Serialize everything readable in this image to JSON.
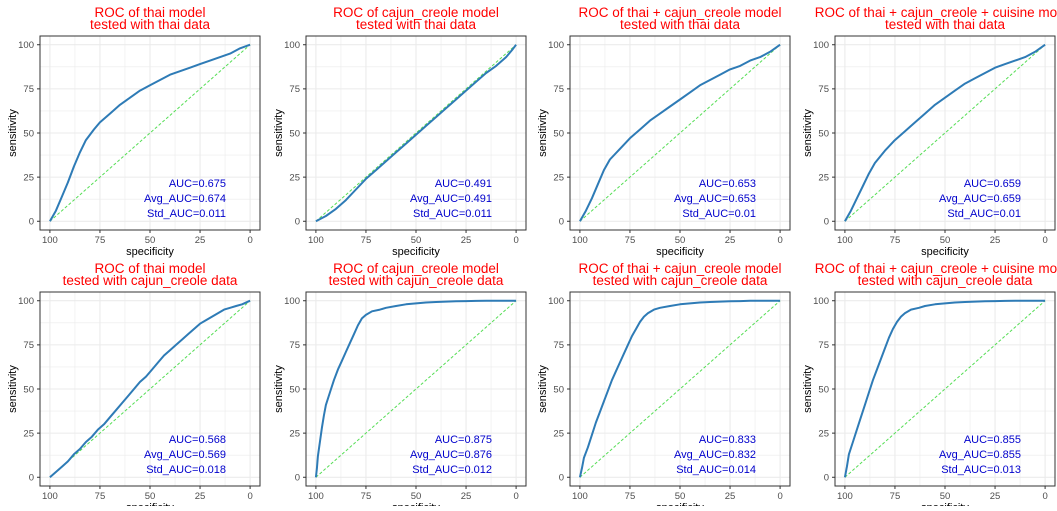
{
  "colors": {
    "title": "#ff0000",
    "curve": "#2e7bb6",
    "diagonal": "#55dd55",
    "auc_text": "#0000cc",
    "grid": "#ebebeb",
    "axis_text": "#4d4d4d",
    "label_text": "#000000"
  },
  "chart_data": [
    {
      "type": "line",
      "title": "ROC of thai model",
      "subtitle": "tested with thai data",
      "xlabel": "specificity",
      "ylabel": "sensitivity",
      "xlim": [
        100,
        0
      ],
      "ylim": [
        0,
        100
      ],
      "x_ticks": [
        100,
        75,
        50,
        25,
        0
      ],
      "y_ticks": [
        0,
        25,
        50,
        75,
        100
      ],
      "x_reversed": true,
      "grid": true,
      "annotations": [
        "AUC=0.675",
        "Avg_AUC=0.674",
        "Std_AUC=0.011"
      ],
      "series": [
        {
          "x": [
            100,
            97,
            94,
            91,
            88,
            85,
            82,
            78,
            75,
            70,
            65,
            60,
            55,
            50,
            45,
            40,
            35,
            30,
            25,
            20,
            15,
            10,
            5,
            0
          ],
          "y": [
            0,
            6,
            14,
            22,
            31,
            39,
            46,
            52,
            56,
            61,
            66,
            70,
            74,
            77,
            80,
            83,
            85,
            87,
            89,
            91,
            93,
            95,
            98,
            100
          ]
        }
      ]
    },
    {
      "type": "line",
      "title": "ROC of cajun_creole model",
      "subtitle": "tested with thai data",
      "xlabel": "specificity",
      "ylabel": "sensitivity",
      "xlim": [
        100,
        0
      ],
      "ylim": [
        0,
        100
      ],
      "x_ticks": [
        100,
        75,
        50,
        25,
        0
      ],
      "y_ticks": [
        0,
        25,
        50,
        75,
        100
      ],
      "x_reversed": true,
      "grid": true,
      "annotations": [
        "AUC=0.491",
        "Avg_AUC=0.491",
        "Std_AUC=0.011"
      ],
      "series": [
        {
          "x": [
            100,
            95,
            90,
            85,
            80,
            75,
            70,
            65,
            60,
            55,
            50,
            45,
            40,
            35,
            30,
            25,
            20,
            15,
            10,
            5,
            2,
            0
          ],
          "y": [
            0,
            3,
            7,
            12,
            18,
            24,
            29,
            34,
            39,
            44,
            49,
            54,
            59,
            64,
            69,
            74,
            79,
            84,
            88,
            93,
            97,
            100
          ]
        }
      ]
    },
    {
      "type": "line",
      "title": "ROC of thai + cajun_creole model",
      "subtitle": "tested with thai data",
      "xlabel": "specificity",
      "ylabel": "sensitivity",
      "xlim": [
        100,
        0
      ],
      "ylim": [
        0,
        100
      ],
      "x_ticks": [
        100,
        75,
        50,
        25,
        0
      ],
      "y_ticks": [
        0,
        25,
        50,
        75,
        100
      ],
      "x_reversed": true,
      "grid": true,
      "annotations": [
        "AUC=0.653",
        "Avg_AUC=0.653",
        "Std_AUC=0.01"
      ],
      "series": [
        {
          "x": [
            100,
            97,
            94,
            91,
            88,
            85,
            80,
            75,
            70,
            65,
            60,
            55,
            50,
            45,
            40,
            35,
            30,
            25,
            20,
            15,
            10,
            5,
            0
          ],
          "y": [
            0,
            6,
            13,
            21,
            29,
            35,
            41,
            47,
            52,
            57,
            61,
            65,
            69,
            73,
            77,
            80,
            83,
            86,
            88,
            91,
            93,
            96,
            100
          ]
        }
      ]
    },
    {
      "type": "line",
      "title": "ROC of thai + cajun_creole + cuisine model",
      "subtitle": "tested with thai data",
      "xlabel": "specificity",
      "ylabel": "sensitivity",
      "xlim": [
        100,
        0
      ],
      "ylim": [
        0,
        100
      ],
      "x_ticks": [
        100,
        75,
        50,
        25,
        0
      ],
      "y_ticks": [
        0,
        25,
        50,
        75,
        100
      ],
      "x_reversed": true,
      "grid": true,
      "annotations": [
        "AUC=0.659",
        "Avg_AUC=0.659",
        "Std_AUC=0.01"
      ],
      "series": [
        {
          "x": [
            100,
            97,
            94,
            91,
            88,
            85,
            80,
            75,
            70,
            65,
            60,
            55,
            50,
            45,
            40,
            35,
            30,
            25,
            20,
            15,
            10,
            5,
            0
          ],
          "y": [
            0,
            6,
            13,
            20,
            27,
            33,
            40,
            46,
            51,
            56,
            61,
            66,
            70,
            74,
            78,
            81,
            84,
            87,
            89,
            91,
            93,
            96,
            100
          ]
        }
      ]
    },
    {
      "type": "line",
      "title": "ROC of thai model",
      "subtitle": "tested with cajun_creole data",
      "xlabel": "specificity",
      "ylabel": "sensitivity",
      "xlim": [
        100,
        0
      ],
      "ylim": [
        0,
        100
      ],
      "x_ticks": [
        100,
        75,
        50,
        25,
        0
      ],
      "y_ticks": [
        0,
        25,
        50,
        75,
        100
      ],
      "x_reversed": true,
      "grid": true,
      "annotations": [
        "AUC=0.568",
        "Avg_AUC=0.569",
        "Std_AUC=0.018"
      ],
      "series": [
        {
          "x": [
            100,
            97,
            94,
            91,
            88,
            85,
            82,
            79,
            76,
            73,
            70,
            67,
            64,
            61,
            58,
            55,
            52,
            49,
            46,
            43,
            40,
            37,
            34,
            31,
            28,
            25,
            22,
            19,
            16,
            13,
            10,
            7,
            4,
            0
          ],
          "y": [
            0,
            3,
            6,
            9,
            13,
            16,
            20,
            23,
            27,
            30,
            34,
            38,
            42,
            46,
            50,
            54,
            57,
            61,
            65,
            69,
            72,
            75,
            78,
            81,
            84,
            87,
            89,
            91,
            93,
            95,
            96,
            97,
            98,
            100
          ]
        }
      ]
    },
    {
      "type": "line",
      "title": "ROC of cajun_creole model",
      "subtitle": "tested with cajun_creole data",
      "xlabel": "specificity",
      "ylabel": "sensitivity",
      "xlim": [
        100,
        0
      ],
      "ylim": [
        0,
        100
      ],
      "x_ticks": [
        100,
        75,
        50,
        25,
        0
      ],
      "y_ticks": [
        0,
        25,
        50,
        75,
        100
      ],
      "x_reversed": true,
      "grid": true,
      "annotations": [
        "AUC=0.875",
        "Avg_AUC=0.876",
        "Std_AUC=0.012"
      ],
      "series": [
        {
          "x": [
            100,
            99.5,
            99,
            98,
            97,
            96,
            95,
            93,
            91,
            89,
            87,
            85,
            83,
            81,
            79,
            77,
            75,
            72,
            68,
            65,
            60,
            55,
            50,
            45,
            40,
            35,
            30,
            25,
            20,
            15,
            10,
            5,
            0
          ],
          "y": [
            0,
            5,
            12,
            20,
            28,
            35,
            41,
            48,
            55,
            61,
            66,
            71,
            76,
            81,
            86,
            90,
            92,
            94,
            95,
            96,
            97,
            98,
            98.5,
            99,
            99.3,
            99.5,
            99.7,
            99.8,
            99.9,
            100,
            100,
            100,
            100
          ]
        }
      ]
    },
    {
      "type": "line",
      "title": "ROC of thai + cajun_creole model",
      "subtitle": "tested with cajun_creole data",
      "xlabel": "specificity",
      "ylabel": "sensitivity",
      "xlim": [
        100,
        0
      ],
      "ylim": [
        0,
        100
      ],
      "x_ticks": [
        100,
        75,
        50,
        25,
        0
      ],
      "y_ticks": [
        0,
        25,
        50,
        75,
        100
      ],
      "x_reversed": true,
      "grid": true,
      "annotations": [
        "AUC=0.833",
        "Avg_AUC=0.832",
        "Std_AUC=0.014"
      ],
      "series": [
        {
          "x": [
            100,
            99,
            98,
            96,
            94,
            92,
            90,
            88,
            86,
            84,
            82,
            80,
            78,
            76,
            74,
            72,
            70,
            68,
            66,
            63,
            60,
            55,
            50,
            45,
            40,
            35,
            30,
            25,
            20,
            15,
            10,
            5,
            0
          ],
          "y": [
            0,
            5,
            11,
            17,
            24,
            31,
            37,
            43,
            49,
            55,
            60,
            65,
            70,
            75,
            80,
            84,
            88,
            91,
            93,
            95,
            96,
            97,
            98,
            98.5,
            99,
            99.3,
            99.5,
            99.7,
            99.8,
            100,
            100,
            100,
            100
          ]
        }
      ]
    },
    {
      "type": "line",
      "title": "ROC of thai + cajun_creole + cuisine model",
      "subtitle": "tested with cajun_creole data",
      "xlabel": "specificity",
      "ylabel": "sensitivity",
      "xlim": [
        100,
        0
      ],
      "ylim": [
        0,
        100
      ],
      "x_ticks": [
        100,
        75,
        50,
        25,
        0
      ],
      "y_ticks": [
        0,
        25,
        50,
        75,
        100
      ],
      "x_reversed": true,
      "grid": true,
      "annotations": [
        "AUC=0.855",
        "Avg_AUC=0.855",
        "Std_AUC=0.013"
      ],
      "series": [
        {
          "x": [
            100,
            99,
            98,
            96,
            94,
            92,
            90,
            88,
            86,
            84,
            82,
            80,
            78,
            76,
            74,
            72,
            70,
            67,
            63,
            60,
            55,
            50,
            45,
            40,
            35,
            30,
            25,
            20,
            15,
            10,
            5,
            0
          ],
          "y": [
            0,
            6,
            13,
            20,
            27,
            34,
            41,
            48,
            55,
            61,
            67,
            73,
            79,
            84,
            88,
            91,
            93,
            95,
            96,
            97,
            98,
            98.5,
            99,
            99.3,
            99.5,
            99.7,
            99.8,
            99.9,
            100,
            100,
            100,
            100
          ]
        }
      ]
    }
  ]
}
